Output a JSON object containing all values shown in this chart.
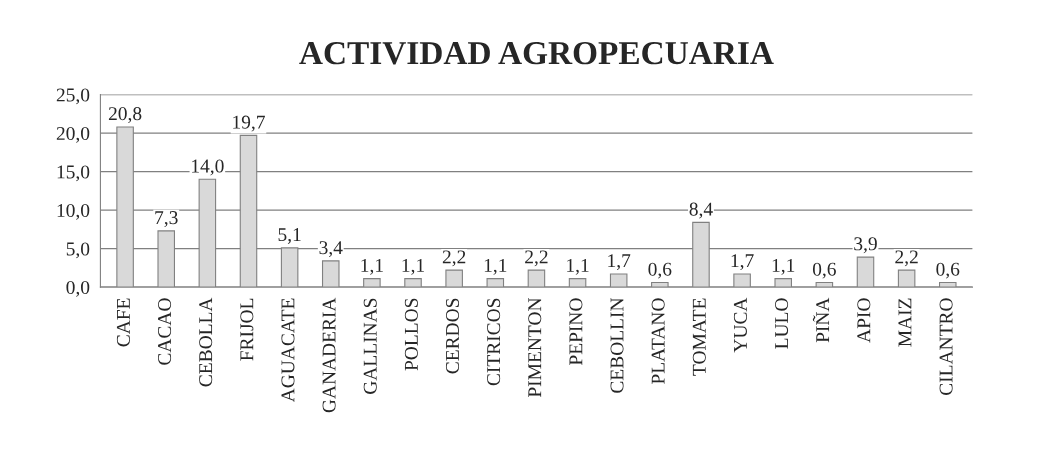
{
  "chart_data": {
    "type": "bar",
    "title": "ACTIVIDAD AGROPECUARIA",
    "categories": [
      "CAFE",
      "CACAO",
      "CEBOLLA",
      "FRIJOL",
      "AGUACATE",
      "GANADERIA",
      "GALLINAS",
      "POLLOS",
      "CERDOS",
      "CITRICOS",
      "PIMENTON",
      "PEPINO",
      "CEBOLLIN",
      "PLATANO",
      "TOMATE",
      "YUCA",
      "LULO",
      "PIÑA",
      "APIO",
      "MAIZ",
      "CILANTRO"
    ],
    "values": [
      20.8,
      7.3,
      14.0,
      19.7,
      5.1,
      3.4,
      1.1,
      1.1,
      2.2,
      1.1,
      2.2,
      1.1,
      1.7,
      0.6,
      8.4,
      1.7,
      1.1,
      0.6,
      3.9,
      2.2,
      0.6
    ],
    "value_labels": [
      "20,8",
      "7,3",
      "14,0",
      "19,7",
      "5,1",
      "3,4",
      "1,1",
      "1,1",
      "2,2",
      "1,1",
      "2,2",
      "1,1",
      "1,7",
      "0,6",
      "8,4",
      "1,7",
      "1,1",
      "0,6",
      "3,9",
      "2,2",
      "0,6"
    ],
    "color": "#d9d9d9",
    "ylim": [
      0,
      25
    ],
    "yticks": [
      {
        "value": 0,
        "label": "0,0"
      },
      {
        "value": 5,
        "label": "5,0"
      },
      {
        "value": 10,
        "label": "10,0"
      },
      {
        "value": 15,
        "label": "15,0"
      },
      {
        "value": 20,
        "label": "20,0"
      },
      {
        "value": 25,
        "label": "25,0"
      }
    ],
    "grid": "y",
    "legend": false
  }
}
